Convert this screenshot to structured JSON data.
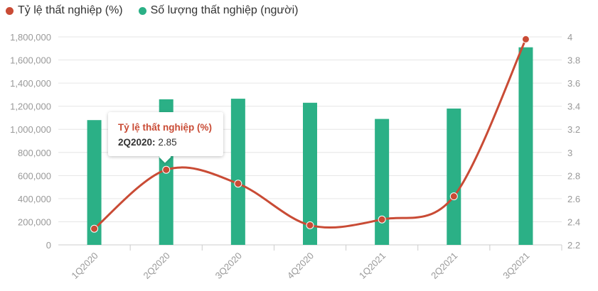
{
  "legend": {
    "line_label": "Tỷ lệ thất nghiệp (%)",
    "bar_label": "Số lượng thất nghiệp (người)"
  },
  "colors": {
    "line": "#c94b35",
    "bar": "#2bb086",
    "grid": "#e6e6e6",
    "axis_text": "#999999"
  },
  "tooltip": {
    "title": "Tỷ lệ thất nghiệp (%)",
    "category": "2Q2020:",
    "value": "2.85"
  },
  "chart_data": {
    "type": "bar",
    "categories": [
      "1Q2020",
      "2Q2020",
      "3Q2020",
      "4Q2020",
      "1Q2021",
      "2Q2021",
      "3Q2021"
    ],
    "series": [
      {
        "name": "Số lượng thất nghiệp (người)",
        "type": "bar",
        "axis": "left",
        "values": [
          1080000,
          1260000,
          1265000,
          1230000,
          1090000,
          1180000,
          1710000
        ]
      },
      {
        "name": "Tỷ lệ thất nghiệp (%)",
        "type": "line",
        "axis": "right",
        "values": [
          2.34,
          2.85,
          2.73,
          2.37,
          2.42,
          2.62,
          3.98
        ]
      }
    ],
    "y_left": {
      "min": 0,
      "max": 1800000,
      "ticks": [
        0,
        200000,
        400000,
        600000,
        800000,
        1000000,
        1200000,
        1400000,
        1600000,
        1800000
      ],
      "tick_labels": [
        "0",
        "200,000",
        "400,000",
        "600,000",
        "800,000",
        "1,000,000",
        "1,200,000",
        "1,400,000",
        "1,600,000",
        "1,800,000"
      ]
    },
    "y_right": {
      "min": 2.2,
      "max": 4,
      "ticks": [
        2.2,
        2.4,
        2.6,
        2.8,
        3,
        3.2,
        3.4,
        3.6,
        3.8,
        4
      ],
      "tick_labels": [
        "2.2",
        "2.4",
        "2.6",
        "2.8",
        "3",
        "3.2",
        "3.4",
        "3.6",
        "3.8",
        "4"
      ]
    },
    "grid": true,
    "legend_position": "top-left"
  }
}
